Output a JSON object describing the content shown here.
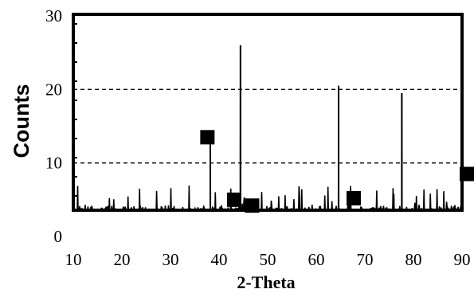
{
  "chart_data": {
    "type": "line",
    "title": "",
    "xlabel": "2-Theta",
    "ylabel": "Counts",
    "xlim": [
      10,
      90
    ],
    "ylim": [
      0,
      30
    ],
    "x_ticks": [
      "10",
      "20",
      "30",
      "40",
      "50",
      "60",
      "70",
      "80",
      "90"
    ],
    "y_ticks": [
      "0",
      "10",
      "20",
      "30"
    ],
    "reference_lines_y": [
      10,
      20
    ],
    "grid": false,
    "legend": "none",
    "line_color": "#000000",
    "baseline_noise": {
      "low": 0,
      "high": 3,
      "occasional_max": 7
    },
    "peaks": [
      {
        "x": 38.2,
        "y": 14
      },
      {
        "x": 44.4,
        "y": 26
      },
      {
        "x": 64.6,
        "y": 20.5
      },
      {
        "x": 77.6,
        "y": 19.5
      }
    ],
    "markers": [
      {
        "x": 37.6,
        "y": 13.5
      },
      {
        "x": 43.1,
        "y": 5
      },
      {
        "x": 46.8,
        "y": 4.2
      },
      {
        "x": 67.7,
        "y": 5.2
      },
      {
        "x": 91.3,
        "y": 8.5
      }
    ]
  }
}
